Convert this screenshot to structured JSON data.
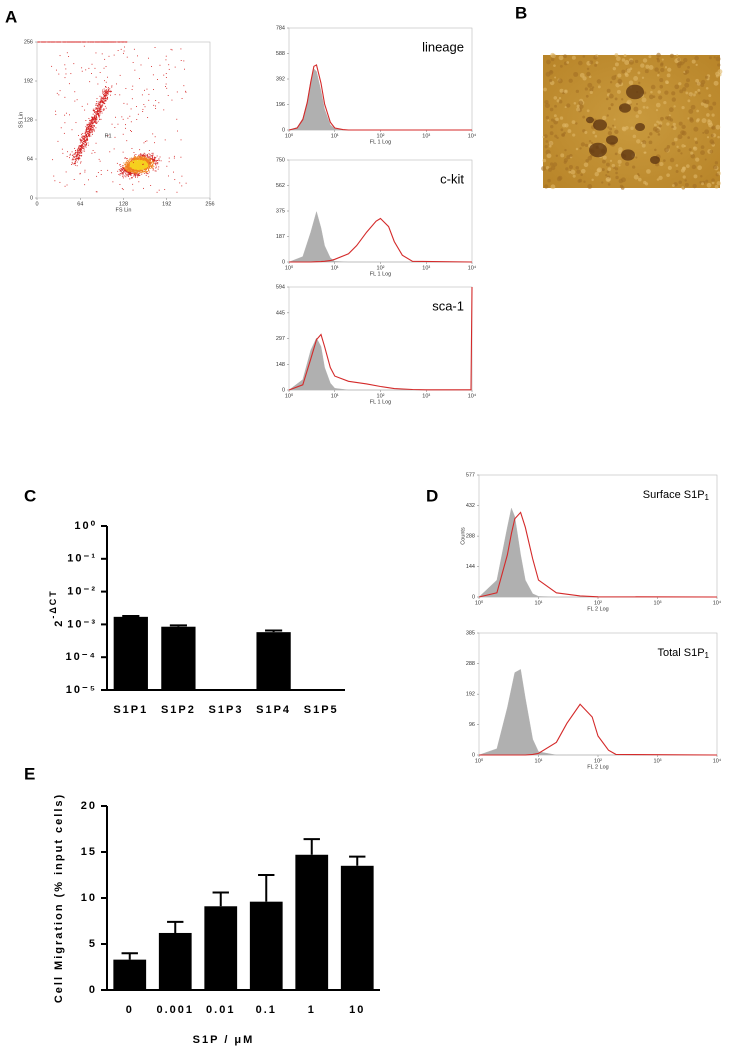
{
  "chart_data": [
    {
      "type": "dot-plot",
      "panel": "A",
      "xlabel": "FS Lin",
      "ylabel": "SS Lin",
      "annotation": "R1",
      "xlim": [
        0,
        256
      ],
      "ylim": [
        0,
        256
      ],
      "xticks": [
        0,
        64,
        128,
        192,
        256
      ],
      "yticks": [
        0,
        64,
        128,
        192,
        256
      ]
    },
    {
      "type": "histogram",
      "title": "lineage",
      "xlabel": "FL 1 Log",
      "xlog": true,
      "xlim": [
        1,
        10000
      ],
      "xticks": [
        {
          "value": 1,
          "label": "10⁰"
        },
        {
          "value": 10,
          "label": "10¹"
        },
        {
          "value": 100,
          "label": "10²"
        },
        {
          "value": 1000,
          "label": "10³"
        },
        {
          "value": 10000,
          "label": "10⁴"
        }
      ],
      "ylim": [
        0,
        784
      ],
      "yticks": [
        0,
        196,
        392,
        588,
        784
      ],
      "x": [
        1,
        1.5,
        2,
        2.5,
        3,
        3.5,
        4,
        5,
        6,
        8,
        10,
        15,
        20,
        10000
      ],
      "series": [
        {
          "color": "#b0b0b0",
          "fill": true,
          "values": [
            0,
            20,
            90,
            220,
            380,
            470,
            450,
            300,
            160,
            40,
            10,
            0,
            0,
            0
          ]
        },
        {
          "color": "#d42a2a",
          "fill": false,
          "values": [
            0,
            15,
            80,
            210,
            370,
            490,
            500,
            360,
            200,
            60,
            15,
            3,
            0,
            0
          ]
        }
      ]
    },
    {
      "type": "histogram",
      "title": "c-kit",
      "xlabel": "FL 1 Log",
      "xlog": true,
      "xlim": [
        1,
        10000
      ],
      "xticks": [
        {
          "value": 1,
          "label": "10⁰"
        },
        {
          "value": 10,
          "label": "10¹"
        },
        {
          "value": 100,
          "label": "10²"
        },
        {
          "value": 1000,
          "label": "10³"
        },
        {
          "value": 10000,
          "label": "10⁴"
        }
      ],
      "ylim": [
        0,
        750
      ],
      "yticks": [
        0,
        187,
        375,
        562,
        750
      ],
      "x": [
        1,
        2,
        3,
        4,
        5,
        6,
        8,
        10,
        20,
        30,
        50,
        80,
        100,
        150,
        200,
        300,
        500,
        10000
      ],
      "series": [
        {
          "color": "#b0b0b0",
          "fill": true,
          "values": [
            0,
            40,
            220,
            370,
            250,
            120,
            30,
            5,
            0,
            0,
            0,
            0,
            0,
            0,
            0,
            0,
            0,
            0
          ]
        },
        {
          "color": "#d42a2a",
          "fill": false,
          "values": [
            0,
            0,
            0,
            2,
            3,
            5,
            10,
            20,
            60,
            120,
            220,
            300,
            320,
            260,
            150,
            50,
            5,
            0
          ]
        }
      ]
    },
    {
      "type": "histogram",
      "title": "sca-1",
      "xlabel": "FL 1 Log",
      "xlog": true,
      "xlim": [
        1,
        10000
      ],
      "xticks": [
        {
          "value": 1,
          "label": "10⁰"
        },
        {
          "value": 10,
          "label": "10¹"
        },
        {
          "value": 100,
          "label": "10²"
        },
        {
          "value": 1000,
          "label": "10³"
        },
        {
          "value": 10000,
          "label": "10⁴"
        }
      ],
      "ylim": [
        0,
        594
      ],
      "yticks": [
        0,
        148,
        297,
        445,
        594
      ],
      "x": [
        1,
        2,
        3,
        4,
        5,
        6,
        8,
        10,
        20,
        50,
        100,
        200,
        500,
        1000,
        9500,
        10000
      ],
      "series": [
        {
          "color": "#b0b0b0",
          "fill": true,
          "values": [
            0,
            60,
            230,
            300,
            250,
            130,
            40,
            10,
            0,
            0,
            0,
            0,
            0,
            0,
            0,
            0
          ]
        },
        {
          "color": "#d42a2a",
          "fill": false,
          "values": [
            0,
            30,
            180,
            290,
            320,
            250,
            130,
            80,
            50,
            35,
            20,
            8,
            3,
            1,
            1,
            594
          ]
        }
      ]
    },
    {
      "type": "image",
      "panel": "B"
    },
    {
      "type": "bar",
      "panel": "C",
      "ylabel": "2",
      "ylabel_sup": "-ΔCT",
      "ylog": true,
      "color": "#000000",
      "categories": [
        "S1P1",
        "S1P2",
        "S1P3",
        "S1P4",
        "S1P5"
      ],
      "values": [
        0.0017,
        0.00085,
        null,
        0.00058,
        null
      ],
      "errors": [
        0.0001,
        8e-05,
        null,
        7e-05,
        null
      ],
      "ylim": [
        1e-05,
        1
      ],
      "yticks": [
        {
          "value": 1e-05,
          "label": "10⁻⁵"
        },
        {
          "value": 0.0001,
          "label": "10⁻⁴"
        },
        {
          "value": 0.001,
          "label": "10⁻³"
        },
        {
          "value": 0.01,
          "label": "10⁻²"
        },
        {
          "value": 0.1,
          "label": "10⁻¹"
        },
        {
          "value": 1,
          "label": "10⁰"
        }
      ]
    },
    {
      "type": "histogram",
      "panel": "D",
      "title": "Surface S1P",
      "title_sub": "1",
      "xlabel": "FL 2 Log",
      "ylabel": "Counts",
      "xlog": true,
      "xlim": [
        1,
        10000
      ],
      "xticks": [
        {
          "value": 1,
          "label": "10⁰"
        },
        {
          "value": 10,
          "label": "10¹"
        },
        {
          "value": 100,
          "label": "10²"
        },
        {
          "value": 1000,
          "label": "10³"
        },
        {
          "value": 10000,
          "label": "10⁴"
        }
      ],
      "ylim": [
        0,
        577
      ],
      "yticks": [
        0,
        144,
        288,
        432,
        577
      ],
      "x": [
        1,
        2,
        3,
        3.5,
        4,
        5,
        6,
        8,
        10,
        20,
        50,
        100,
        10000
      ],
      "series": [
        {
          "color": "#b0b0b0",
          "fill": true,
          "values": [
            0,
            80,
            330,
            420,
            380,
            200,
            80,
            15,
            3,
            0,
            0,
            0,
            0
          ]
        },
        {
          "color": "#d42a2a",
          "fill": false,
          "values": [
            0,
            20,
            200,
            300,
            370,
            400,
            330,
            180,
            80,
            20,
            5,
            1,
            0
          ]
        }
      ]
    },
    {
      "type": "histogram",
      "title": "Total S1P",
      "title_sub": "1",
      "xlabel": "FL 2 Log",
      "xlog": true,
      "xlim": [
        1,
        10000
      ],
      "xticks": [
        {
          "value": 1,
          "label": "10⁰"
        },
        {
          "value": 10,
          "label": "10¹"
        },
        {
          "value": 100,
          "label": "10²"
        },
        {
          "value": 1000,
          "label": "10³"
        },
        {
          "value": 10000,
          "label": "10⁴"
        }
      ],
      "ylim": [
        0,
        385
      ],
      "yticks": [
        0,
        96,
        192,
        288,
        385
      ],
      "x": [
        1,
        2,
        3,
        4,
        5,
        6,
        8,
        10,
        20,
        30,
        50,
        80,
        100,
        150,
        200,
        10000
      ],
      "series": [
        {
          "color": "#b0b0b0",
          "fill": true,
          "values": [
            0,
            20,
            150,
            260,
            270,
            180,
            50,
            10,
            0,
            0,
            0,
            0,
            0,
            0,
            0,
            0
          ]
        },
        {
          "color": "#d42a2a",
          "fill": false,
          "values": [
            0,
            0,
            0,
            0,
            0,
            0,
            2,
            5,
            40,
            100,
            160,
            120,
            60,
            15,
            2,
            0
          ]
        }
      ]
    },
    {
      "type": "bar",
      "panel": "E",
      "xlabel": "S1P / μM",
      "ylabel": "Cell Migration (% input cells)",
      "color": "#000000",
      "categories": [
        "0",
        "0.001",
        "0.01",
        "0.1",
        "1",
        "10"
      ],
      "values": [
        3.3,
        6.2,
        9.1,
        9.6,
        14.7,
        13.5
      ],
      "errors": [
        0.7,
        1.2,
        1.5,
        2.9,
        1.7,
        1.0
      ],
      "ylim": [
        0,
        20
      ],
      "yticks": [
        0,
        5,
        10,
        15,
        20
      ]
    }
  ]
}
